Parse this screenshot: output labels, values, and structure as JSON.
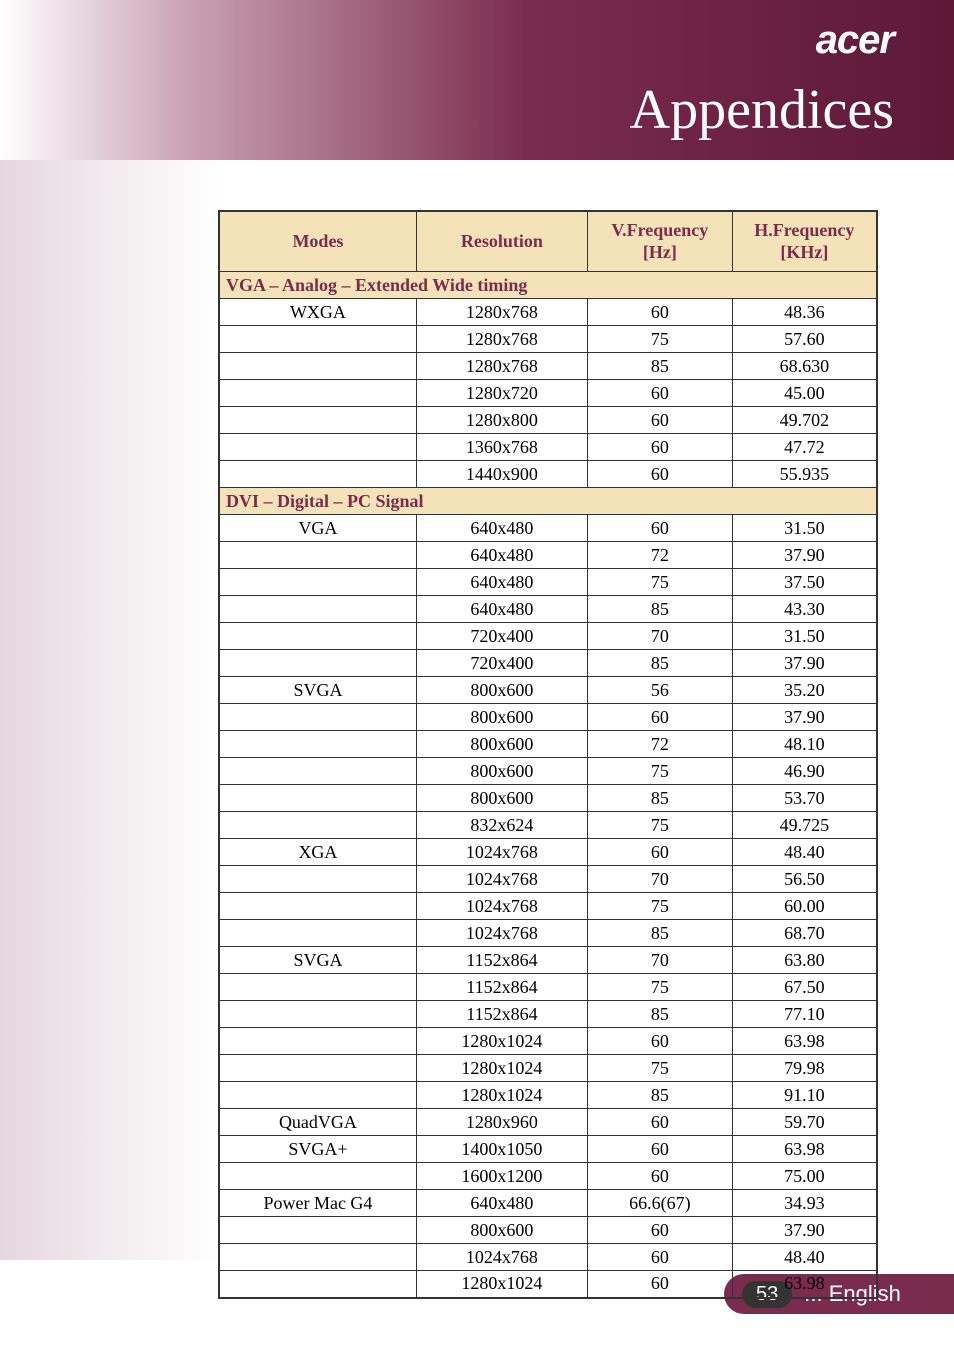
{
  "header": {
    "logo": "acer",
    "title": "Appendices"
  },
  "table": {
    "columns": [
      {
        "key": "modes",
        "label": "Modes"
      },
      {
        "key": "resolution",
        "label": "Resolution"
      },
      {
        "key": "vfreq",
        "label": "V.Frequency\n[Hz]"
      },
      {
        "key": "hfreq",
        "label": "H.Frequency\n[KHz]"
      }
    ],
    "header_bg": "#f4e2b8",
    "header_fg": "#7a2c4f",
    "border_color": "#333333",
    "sections": [
      {
        "title": "VGA – Analog – Extended Wide timing",
        "rows": [
          {
            "modes": "WXGA",
            "resolution": "1280x768",
            "vfreq": "60",
            "hfreq": "48.36"
          },
          {
            "modes": "",
            "resolution": "1280x768",
            "vfreq": "75",
            "hfreq": "57.60"
          },
          {
            "modes": "",
            "resolution": "1280x768",
            "vfreq": "85",
            "hfreq": "68.630"
          },
          {
            "modes": "",
            "resolution": "1280x720",
            "vfreq": "60",
            "hfreq": "45.00"
          },
          {
            "modes": "",
            "resolution": "1280x800",
            "vfreq": "60",
            "hfreq": "49.702"
          },
          {
            "modes": "",
            "resolution": "1360x768",
            "vfreq": "60",
            "hfreq": "47.72"
          },
          {
            "modes": "",
            "resolution": "1440x900",
            "vfreq": "60",
            "hfreq": "55.935"
          }
        ]
      },
      {
        "title": "DVI – Digital – PC Signal",
        "rows": [
          {
            "modes": "VGA",
            "resolution": "640x480",
            "vfreq": "60",
            "hfreq": "31.50"
          },
          {
            "modes": "",
            "resolution": "640x480",
            "vfreq": "72",
            "hfreq": "37.90"
          },
          {
            "modes": "",
            "resolution": "640x480",
            "vfreq": "75",
            "hfreq": "37.50"
          },
          {
            "modes": "",
            "resolution": "640x480",
            "vfreq": "85",
            "hfreq": "43.30"
          },
          {
            "modes": "",
            "resolution": "720x400",
            "vfreq": "70",
            "hfreq": "31.50"
          },
          {
            "modes": "",
            "resolution": "720x400",
            "vfreq": "85",
            "hfreq": "37.90"
          },
          {
            "modes": "SVGA",
            "resolution": "800x600",
            "vfreq": "56",
            "hfreq": "35.20"
          },
          {
            "modes": "",
            "resolution": "800x600",
            "vfreq": "60",
            "hfreq": "37.90"
          },
          {
            "modes": "",
            "resolution": "800x600",
            "vfreq": "72",
            "hfreq": "48.10"
          },
          {
            "modes": "",
            "resolution": "800x600",
            "vfreq": "75",
            "hfreq": "46.90"
          },
          {
            "modes": "",
            "resolution": "800x600",
            "vfreq": "85",
            "hfreq": "53.70"
          },
          {
            "modes": "",
            "resolution": "832x624",
            "vfreq": "75",
            "hfreq": "49.725"
          },
          {
            "modes": "XGA",
            "resolution": "1024x768",
            "vfreq": "60",
            "hfreq": "48.40"
          },
          {
            "modes": "",
            "resolution": "1024x768",
            "vfreq": "70",
            "hfreq": "56.50"
          },
          {
            "modes": "",
            "resolution": "1024x768",
            "vfreq": "75",
            "hfreq": "60.00"
          },
          {
            "modes": "",
            "resolution": "1024x768",
            "vfreq": "85",
            "hfreq": "68.70"
          },
          {
            "modes": "SVGA",
            "resolution": "1152x864",
            "vfreq": "70",
            "hfreq": "63.80"
          },
          {
            "modes": "",
            "resolution": "1152x864",
            "vfreq": "75",
            "hfreq": "67.50"
          },
          {
            "modes": "",
            "resolution": "1152x864",
            "vfreq": "85",
            "hfreq": "77.10"
          },
          {
            "modes": "",
            "resolution": "1280x1024",
            "vfreq": "60",
            "hfreq": "63.98"
          },
          {
            "modes": "",
            "resolution": "1280x1024",
            "vfreq": "75",
            "hfreq": "79.98"
          },
          {
            "modes": "",
            "resolution": "1280x1024",
            "vfreq": "85",
            "hfreq": "91.10"
          },
          {
            "modes": "QuadVGA",
            "resolution": "1280x960",
            "vfreq": "60",
            "hfreq": "59.70"
          },
          {
            "modes": "SVGA+",
            "resolution": "1400x1050",
            "vfreq": "60",
            "hfreq": "63.98"
          },
          {
            "modes": "",
            "resolution": "1600x1200",
            "vfreq": "60",
            "hfreq": "75.00"
          },
          {
            "modes": "Power Mac G4",
            "resolution": "640x480",
            "vfreq": "66.6(67)",
            "hfreq": "34.93"
          },
          {
            "modes": "",
            "resolution": "800x600",
            "vfreq": "60",
            "hfreq": "37.90"
          },
          {
            "modes": "",
            "resolution": "1024x768",
            "vfreq": "60",
            "hfreq": "48.40"
          },
          {
            "modes": "",
            "resolution": "1280x1024",
            "vfreq": "60",
            "hfreq": "63.98"
          }
        ]
      }
    ]
  },
  "footer": {
    "page": "53",
    "language": "... English",
    "bg_color": "#7a2c4f",
    "page_bg": "#333333",
    "text_color": "#ffffff"
  }
}
